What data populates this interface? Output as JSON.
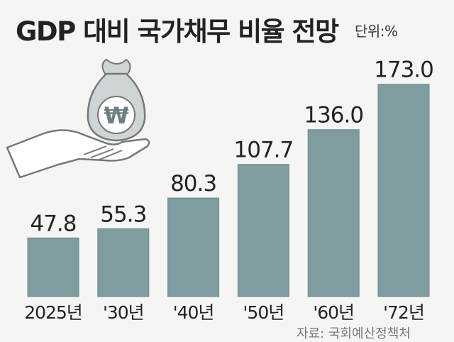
{
  "header": {
    "title": "GDP 대비 국가채무 비율 전망",
    "unit": "단위:%"
  },
  "footer": {
    "source": "자료: 국회예산정책처"
  },
  "icon": {
    "name": "money-bag-hand-icon",
    "symbol": "₩"
  },
  "colors": {
    "bar": "#7f9ca0",
    "bar_edge": "#6c8a8e",
    "text": "#222222",
    "background": "#f5f5f3"
  },
  "chart_data": {
    "type": "bar",
    "categories": [
      "2025년",
      "'30년",
      "'40년",
      "'50년",
      "'60년",
      "'72년"
    ],
    "values": [
      47.8,
      55.3,
      80.3,
      107.7,
      136.0,
      173.0
    ],
    "value_labels": [
      "47.8",
      "55.3",
      "80.3",
      "107.7",
      "136.0",
      "173.0"
    ],
    "title": "GDP 대비 국가채무 비율 전망",
    "unit": "단위:%",
    "ylim": [
      0,
      180
    ],
    "grid": false,
    "legend": "none"
  }
}
